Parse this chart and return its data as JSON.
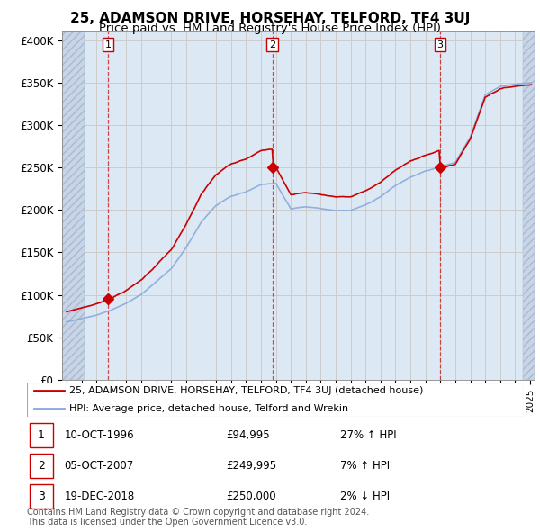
{
  "title": "25, ADAMSON DRIVE, HORSEHAY, TELFORD, TF4 3UJ",
  "subtitle": "Price paid vs. HM Land Registry's House Price Index (HPI)",
  "title_fontsize": 11,
  "subtitle_fontsize": 9.5,
  "ylabel_ticks": [
    "£0",
    "£50K",
    "£100K",
    "£150K",
    "£200K",
    "£250K",
    "£300K",
    "£350K",
    "£400K"
  ],
  "ytick_values": [
    0,
    50000,
    100000,
    150000,
    200000,
    250000,
    300000,
    350000,
    400000
  ],
  "ylim": [
    0,
    410000
  ],
  "xlim_start": 1993.7,
  "xlim_end": 2025.3,
  "hatch_left_end": 1995.2,
  "hatch_right_start": 2024.5,
  "sales": [
    {
      "year": 1996.78,
      "price": 94995,
      "label": "1"
    },
    {
      "year": 2007.76,
      "price": 249995,
      "label": "2"
    },
    {
      "year": 2018.97,
      "price": 250000,
      "label": "3"
    }
  ],
  "vline_years": [
    1996.78,
    2007.76,
    2018.97
  ],
  "sale_color": "#cc0000",
  "hpi_color": "#88aadd",
  "legend_entries": [
    "25, ADAMSON DRIVE, HORSEHAY, TELFORD, TF4 3UJ (detached house)",
    "HPI: Average price, detached house, Telford and Wrekin"
  ],
  "table_rows": [
    {
      "num": "1",
      "date": "10-OCT-1996",
      "price": "£94,995",
      "hpi": "27% ↑ HPI"
    },
    {
      "num": "2",
      "date": "05-OCT-2007",
      "price": "£249,995",
      "hpi": "7% ↑ HPI"
    },
    {
      "num": "3",
      "date": "19-DEC-2018",
      "price": "£250,000",
      "hpi": "2% ↓ HPI"
    }
  ],
  "footer": "Contains HM Land Registry data © Crown copyright and database right 2024.\nThis data is licensed under the Open Government Licence v3.0.",
  "grid_color": "#cccccc",
  "bg_plot_color": "#dde8f5",
  "background_color": "#ffffff",
  "hatch_color": "#c8d4e8"
}
